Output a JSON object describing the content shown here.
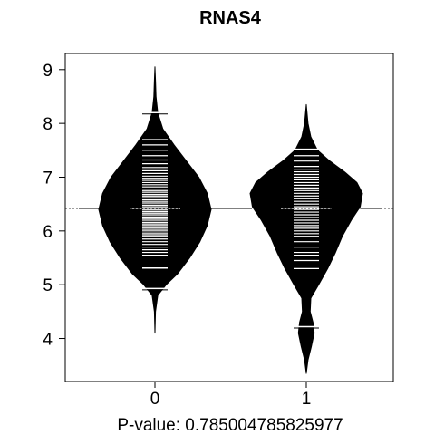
{
  "chart_data": {
    "type": "beanplot",
    "title": "RNAS4",
    "xlabel": "P-value: 0.785004785825977",
    "ylabel": "",
    "categories": [
      "0",
      "1"
    ],
    "ylim": [
      3.2,
      9.3
    ],
    "yticks": [
      4,
      5,
      6,
      7,
      8,
      9
    ],
    "overall_mean": 6.42,
    "grid": false,
    "colors": {
      "bean": "#000000",
      "background": "#ffffff",
      "line": "#ffffff"
    },
    "series": [
      {
        "category": "0",
        "mean": 6.42,
        "quantile_marks": [
          4.93,
          5.31,
          8.2
        ],
        "density": [
          [
            4.1,
            0
          ],
          [
            4.5,
            0.01
          ],
          [
            4.8,
            0.05
          ],
          [
            5.0,
            0.2
          ],
          [
            5.2,
            0.4
          ],
          [
            5.5,
            0.62
          ],
          [
            5.8,
            0.8
          ],
          [
            6.1,
            0.93
          ],
          [
            6.4,
            1.0
          ],
          [
            6.7,
            0.93
          ],
          [
            7.0,
            0.78
          ],
          [
            7.3,
            0.56
          ],
          [
            7.6,
            0.34
          ],
          [
            7.9,
            0.14
          ],
          [
            8.2,
            0.05
          ],
          [
            8.5,
            0.02
          ],
          [
            8.8,
            0.01
          ],
          [
            9.05,
            0
          ]
        ],
        "observations": [
          5.31,
          5.55,
          5.6,
          5.65,
          5.7,
          5.75,
          5.8,
          5.85,
          5.9,
          5.93,
          5.96,
          6.0,
          6.03,
          6.06,
          6.1,
          6.13,
          6.16,
          6.2,
          6.23,
          6.26,
          6.3,
          6.33,
          6.36,
          6.39,
          6.45,
          6.48,
          6.52,
          6.55,
          6.58,
          6.62,
          6.65,
          6.68,
          6.72,
          6.75,
          6.78,
          6.82,
          6.86,
          6.9,
          6.94,
          6.98,
          7.02,
          7.07,
          7.12,
          7.18,
          7.25,
          7.32,
          7.4,
          7.5,
          7.6,
          7.7
        ]
      },
      {
        "category": "1",
        "mean": 6.42,
        "quantile_marks": [
          4.22,
          7.52
        ],
        "density": [
          [
            3.35,
            0
          ],
          [
            3.6,
            0.03
          ],
          [
            3.85,
            0.09
          ],
          [
            4.1,
            0.14
          ],
          [
            4.3,
            0.12
          ],
          [
            4.5,
            0.07
          ],
          [
            4.75,
            0.08
          ],
          [
            5.0,
            0.22
          ],
          [
            5.3,
            0.38
          ],
          [
            5.6,
            0.52
          ],
          [
            5.9,
            0.64
          ],
          [
            6.2,
            0.8
          ],
          [
            6.45,
            0.96
          ],
          [
            6.7,
            1.0
          ],
          [
            6.9,
            0.9
          ],
          [
            7.1,
            0.68
          ],
          [
            7.3,
            0.42
          ],
          [
            7.5,
            0.2
          ],
          [
            7.75,
            0.08
          ],
          [
            8.0,
            0.03
          ],
          [
            8.35,
            0
          ]
        ],
        "observations": [
          5.3,
          5.45,
          5.55,
          5.6,
          5.7,
          5.8,
          5.9,
          5.95,
          6.0,
          6.05,
          6.1,
          6.15,
          6.2,
          6.25,
          6.3,
          6.35,
          6.4,
          6.45,
          6.5,
          6.55,
          6.6,
          6.65,
          6.7,
          6.75,
          6.8,
          6.85,
          6.9,
          6.95,
          7.0,
          7.05,
          7.1,
          7.15,
          7.2,
          7.3,
          7.4,
          7.52
        ]
      }
    ]
  }
}
